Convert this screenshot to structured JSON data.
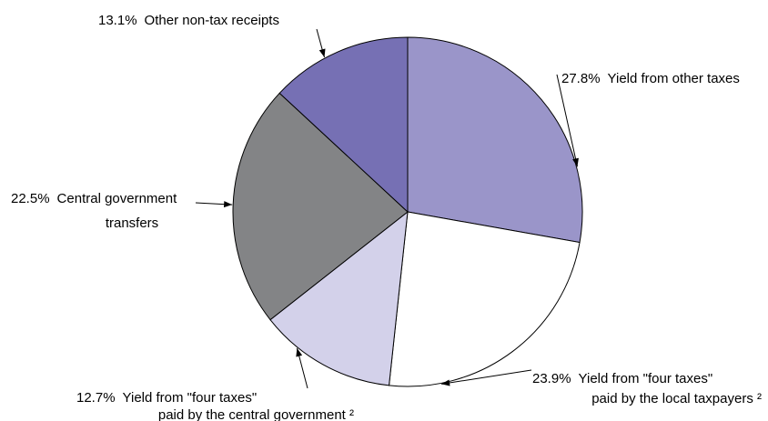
{
  "chart_data": {
    "type": "pie",
    "slices": [
      {
        "value": 27.8,
        "percent_label": "27.8%",
        "label_lines": [
          "Yield from other taxes"
        ],
        "color": "#9a95c9"
      },
      {
        "value": 23.9,
        "percent_label": "23.9%",
        "label_lines": [
          "Yield from \"four taxes\"",
          "paid by the local taxpayers ²"
        ],
        "color": "#ffffff"
      },
      {
        "value": 12.7,
        "percent_label": "12.7%",
        "label_lines": [
          "Yield from \"four taxes\"",
          "paid by the central government ²"
        ],
        "color": "#d3d1ea"
      },
      {
        "value": 22.5,
        "percent_label": "22.5%",
        "label_lines": [
          "Central government",
          "transfers"
        ],
        "color": "#838486"
      },
      {
        "value": 13.1,
        "percent_label": "13.1%",
        "label_lines": [
          "Other non-tax receipts"
        ],
        "color": "#7670b4"
      }
    ],
    "start": "12 o'clock",
    "direction": "clockwise"
  }
}
